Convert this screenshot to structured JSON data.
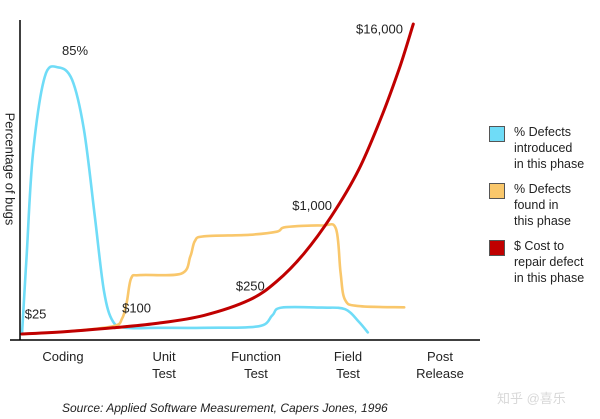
{
  "chart_data": {
    "type": "line",
    "ylabel": "Percentage of bugs",
    "categories": [
      "Coding",
      "Unit\nTest",
      "Function\nTest",
      "Field\nTest",
      "Post\nRelease"
    ],
    "series": [
      {
        "name": "% Defects\nintroduced\nin this phase",
        "color": "#6fdcf7",
        "points": [
          [
            0.0,
            0
          ],
          [
            0.05,
            25
          ],
          [
            0.12,
            58
          ],
          [
            0.25,
            83
          ],
          [
            0.4,
            86
          ],
          [
            0.55,
            82
          ],
          [
            0.68,
            66
          ],
          [
            0.8,
            38
          ],
          [
            0.9,
            14
          ],
          [
            1.0,
            4
          ],
          [
            1.15,
            2
          ],
          [
            1.5,
            2
          ],
          [
            2.0,
            2
          ],
          [
            2.6,
            2.5
          ],
          [
            2.75,
            6
          ],
          [
            2.85,
            8.5
          ],
          [
            3.3,
            8.5
          ],
          [
            3.55,
            8
          ],
          [
            3.7,
            4
          ],
          [
            3.8,
            0.5
          ]
        ]
      },
      {
        "name": "% Defects\nfound in\nthis phase",
        "color": "#f9c76b",
        "points": [
          [
            0.0,
            0
          ],
          [
            0.5,
            0.8
          ],
          [
            1.0,
            2.5
          ],
          [
            1.1,
            5
          ],
          [
            1.15,
            10
          ],
          [
            1.2,
            18
          ],
          [
            1.3,
            19
          ],
          [
            1.75,
            19.5
          ],
          [
            1.85,
            25
          ],
          [
            1.9,
            30
          ],
          [
            2.0,
            31.5
          ],
          [
            2.5,
            32
          ],
          [
            2.8,
            33
          ],
          [
            2.9,
            34.5
          ],
          [
            3.3,
            35
          ],
          [
            3.45,
            34
          ],
          [
            3.5,
            20
          ],
          [
            3.55,
            11
          ],
          [
            3.7,
            9
          ],
          [
            4.2,
            8.6
          ]
        ]
      },
      {
        "name": "$ Cost to\nrepair defect\nin this phase",
        "color": "#c00000",
        "points": [
          [
            0.0,
            0
          ],
          [
            0.5,
            0.8
          ],
          [
            1.0,
            2
          ],
          [
            1.5,
            3.5
          ],
          [
            2.0,
            6
          ],
          [
            2.5,
            11
          ],
          [
            2.8,
            17
          ],
          [
            3.1,
            26
          ],
          [
            3.4,
            38
          ],
          [
            3.7,
            53
          ],
          [
            3.95,
            70
          ],
          [
            4.15,
            86
          ],
          [
            4.3,
            100
          ]
        ]
      }
    ],
    "annotations": [
      {
        "text": "85%",
        "x": 0.44,
        "y": 90
      },
      {
        "text": "$25",
        "x": 0.03,
        "y": 5
      },
      {
        "text": "$100",
        "x": 1.1,
        "y": 7
      },
      {
        "text": "$250",
        "x": 2.35,
        "y": 14
      },
      {
        "text": "$1,000",
        "x": 2.97,
        "y": 40
      },
      {
        "text": "$16,000",
        "x": 3.67,
        "y": 97
      }
    ],
    "source": "Source: Applied Software Measurement, Capers Jones, 1996",
    "grid": false,
    "legend": "right"
  },
  "watermark": "知乎 @喜乐"
}
